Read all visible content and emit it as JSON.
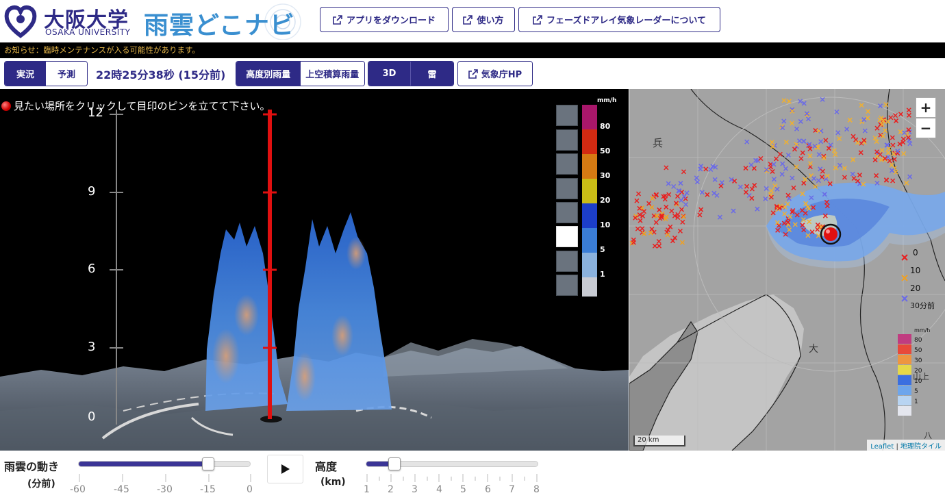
{
  "header": {
    "university_jp": "大阪大学",
    "university_en": "OSAKA UNIVERSITY",
    "app_title": "雨雲どこナビ",
    "buttons": [
      "アプリをダウンロード",
      "使い方",
      "フェーズドアレイ気象レーダーについて"
    ]
  },
  "notice": "お知らせ：臨時メンテナンスが入る可能性があります。",
  "toolbar": {
    "mode_tabs": [
      "実況",
      "予測"
    ],
    "timestamp": "22時25分38秒 (15分前)",
    "rain_tabs": [
      "高度別雨量",
      "上空積算雨量"
    ],
    "view_tabs": [
      "3D",
      "雷"
    ],
    "jma_link": "気象庁HP"
  },
  "view3d": {
    "hint": "見たい場所をクリックして目印のピンを立てて下さい。",
    "altitudes": [
      "12",
      "9",
      "6",
      "3",
      "0"
    ],
    "legend_unit": "mm/h",
    "legend_values": [
      "80",
      "50",
      "30",
      "20",
      "10",
      "5",
      "1"
    ],
    "legend_colors": [
      "#a8176a",
      "#d22a12",
      "#d57a13",
      "#c9bc16",
      "#1c3ec8",
      "#3a7dd6",
      "#8ab1dc",
      "#c8cbd3"
    ]
  },
  "map": {
    "zoom_in": "+",
    "zoom_out": "−",
    "scale": "20 km",
    "attribution_leaflet": "Leaflet",
    "attribution_sep": " | ",
    "attribution_tiles": "地理院タイル",
    "thunder_legend": [
      "0",
      "10",
      "20",
      "30分前"
    ],
    "legend_unit": "mm/h",
    "legend_values": [
      "80",
      "50",
      "30",
      "20",
      "10",
      "5",
      "1"
    ],
    "legend_colors": [
      "#c03c80",
      "#e8493a",
      "#ee9540",
      "#e6d848",
      "#3b6fe0",
      "#6da5ec",
      "#b8d4f2",
      "#e4e6ee"
    ],
    "place_labels": [
      "兵",
      "大",
      "山上",
      "八"
    ]
  },
  "controls": {
    "time_title": "雨雲の動き",
    "time_sub": "(分前)",
    "time_ticks": [
      "-60",
      "-45",
      "-30",
      "-15",
      "0"
    ],
    "time_value_fraction": 0.75,
    "height_title": "高度",
    "height_sub": "(km)",
    "height_ticks": [
      "1",
      "2",
      "3",
      "4",
      "5",
      "6",
      "7",
      "8"
    ],
    "height_value_km": 2
  }
}
